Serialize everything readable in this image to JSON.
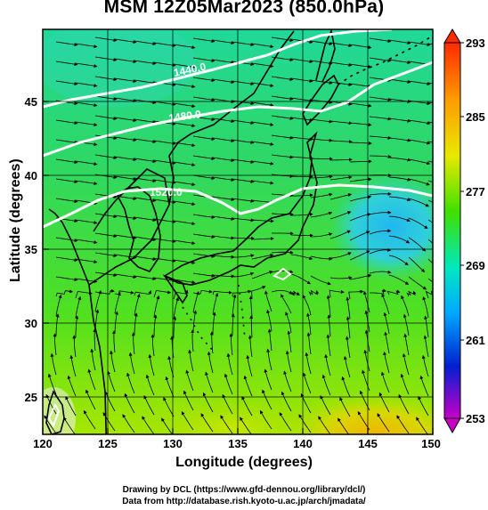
{
  "title": "MSM 12Z05Mar2023 (850.0hPa)",
  "x_axis": {
    "label": "Longitude (degrees)",
    "ticks": [
      "120",
      "125",
      "130",
      "135",
      "140",
      "145",
      "150"
    ]
  },
  "y_axis": {
    "label": "Latitude  (degrees)",
    "ticks": [
      "25",
      "30",
      "35",
      "40",
      "45"
    ]
  },
  "colorbar": {
    "ticks": [
      "293",
      "285",
      "277",
      "269",
      "261",
      "253"
    ]
  },
  "contour_labels": [
    "1440.0",
    "1480.0",
    "1520.0"
  ],
  "credits": [
    "Drawing by DCL (https://www.gfd-dennou.org/library/dcl/)",
    "Data from http://database.rish.kyoto-u.ac.jp/arch/jmadata/"
  ],
  "colors": {
    "cold": "#00c8c0",
    "mid": "#40dd10",
    "warm": "#e0e000",
    "hot": "#f0a000"
  }
}
